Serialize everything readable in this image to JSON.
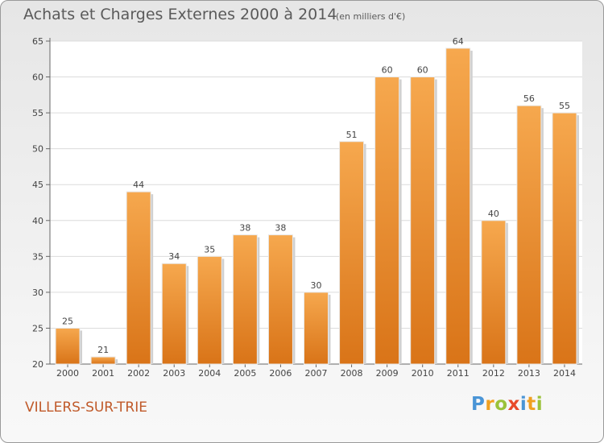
{
  "header": {
    "title": "Achats et Charges Externes 2000 à 2014",
    "subtitle": "(en milliers d'€)"
  },
  "footer": {
    "commune": "VILLERS-SUR-TRIE",
    "logo": "Proxiti"
  },
  "colors": {
    "bar": "#f0a045",
    "bar_dark": "#d97a1e",
    "text": "#5a5a5a",
    "commune": "#c05a2a"
  },
  "chart_data": {
    "type": "bar",
    "title": "Achats et Charges Externes 2000 à 2014",
    "subtitle": "(en milliers d'€)",
    "xlabel": "",
    "ylabel": "",
    "categories": [
      "2000",
      "2001",
      "2002",
      "2003",
      "2004",
      "2005",
      "2006",
      "2007",
      "2008",
      "2009",
      "2010",
      "2011",
      "2012",
      "2013",
      "2014"
    ],
    "values": [
      25,
      21,
      44,
      34,
      35,
      38,
      38,
      30,
      51,
      60,
      60,
      64,
      40,
      56,
      55
    ],
    "ylim": [
      20,
      65
    ],
    "yticks": [
      20,
      25,
      30,
      35,
      40,
      45,
      50,
      55,
      60,
      65
    ],
    "grid": true
  }
}
